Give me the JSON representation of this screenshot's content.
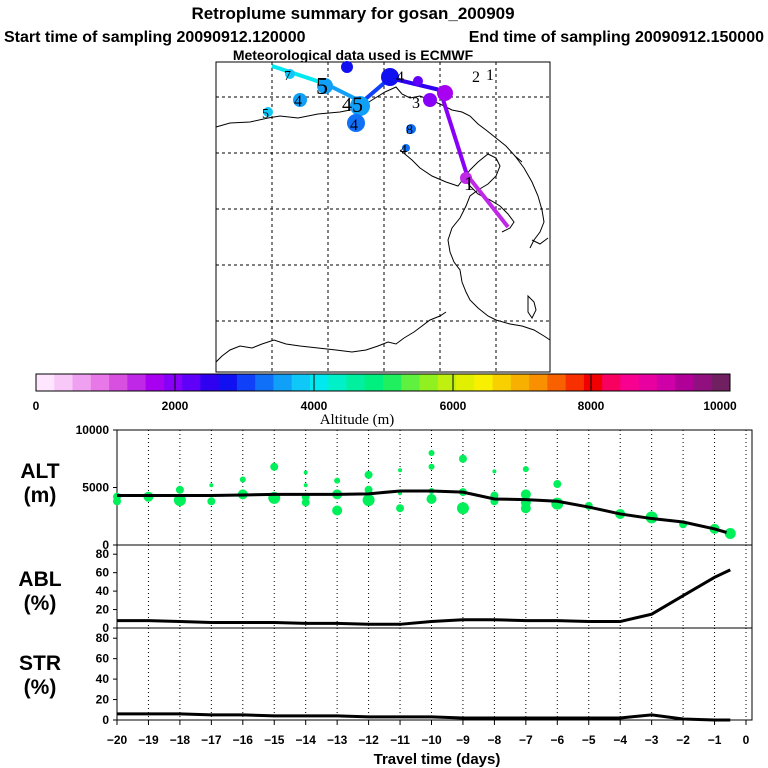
{
  "title": "Retroplume summary for gosan_200909",
  "start_label": "Start time of sampling 20090912.120000",
  "end_label": "End time of sampling 20090912.150000",
  "met_label": "Meteorological data used is ECMWF",
  "colorbar": {
    "label": "Altitude (m)",
    "ticks": [
      "0",
      "2000",
      "4000",
      "6000",
      "8000",
      "10000"
    ],
    "colors": [
      "#ffe6ff",
      "#f8c8f8",
      "#f0a0f0",
      "#e878e8",
      "#d850e0",
      "#c028e8",
      "#a800f0",
      "#8800f8",
      "#6000f8",
      "#3000f0",
      "#1010f0",
      "#1040f8",
      "#1070f8",
      "#10a0f8",
      "#10c8f8",
      "#00e8f0",
      "#00f0c8",
      "#00f0a0",
      "#00f080",
      "#20f060",
      "#60f040",
      "#90f020",
      "#c0f010",
      "#e0f000",
      "#f8f000",
      "#f8d000",
      "#f8b000",
      "#f89000",
      "#f86000",
      "#f83000",
      "#f00000",
      "#f80060",
      "#f80090",
      "#e800a0",
      "#d000a8",
      "#b00098",
      "#901080",
      "#702060"
    ]
  },
  "map": {
    "point_labels": [
      "1",
      "1",
      "2",
      "3",
      "4",
      "4",
      "4",
      "4",
      "4",
      "5",
      "5",
      "5",
      "7",
      "8"
    ]
  },
  "chart_data": [
    {
      "type": "line",
      "name": "ALT",
      "ylabel_line1": "ALT",
      "ylabel_line2": "(m)",
      "ylim": [
        0,
        10000
      ],
      "yticks": [
        "0",
        "5000",
        "10000"
      ],
      "x": [
        -20,
        -19,
        -18,
        -17,
        -16,
        -15,
        -14,
        -13,
        -12,
        -11,
        -10,
        -9,
        -8,
        -7,
        -6,
        -5,
        -4,
        -3,
        -2,
        -1,
        -0.5
      ],
      "y": [
        4300,
        4300,
        4300,
        4300,
        4350,
        4400,
        4400,
        4400,
        4450,
        4700,
        4700,
        4600,
        4000,
        3950,
        3800,
        3300,
        2700,
        2300,
        2000,
        1400,
        1000
      ],
      "scatter": {
        "color": "#00f05a",
        "points": [
          [
            -20,
            4200
          ],
          [
            -20,
            3800
          ],
          [
            -19,
            4200
          ],
          [
            -18,
            4800
          ],
          [
            -18,
            3900
          ],
          [
            -17,
            5200
          ],
          [
            -17,
            3800
          ],
          [
            -16,
            5700
          ],
          [
            -16,
            4400
          ],
          [
            -15,
            4100
          ],
          [
            -15,
            6800
          ],
          [
            -14,
            6300
          ],
          [
            -14,
            5200
          ],
          [
            -14,
            4200
          ],
          [
            -14,
            3700
          ],
          [
            -13,
            5600
          ],
          [
            -13,
            4400
          ],
          [
            -13,
            3000
          ],
          [
            -12,
            6100
          ],
          [
            -12,
            4800
          ],
          [
            -12,
            3900
          ],
          [
            -11,
            6500
          ],
          [
            -11,
            4500
          ],
          [
            -11,
            3200
          ],
          [
            -10,
            8000
          ],
          [
            -10,
            6800
          ],
          [
            -10,
            4700
          ],
          [
            -10,
            4000
          ],
          [
            -9,
            7500
          ],
          [
            -9,
            4600
          ],
          [
            -9,
            3200
          ],
          [
            -8,
            6400
          ],
          [
            -8,
            4300
          ],
          [
            -8,
            3800
          ],
          [
            -7,
            6600
          ],
          [
            -7,
            4400
          ],
          [
            -7,
            3700
          ],
          [
            -7,
            3200
          ],
          [
            -6,
            5300
          ],
          [
            -6,
            3600
          ],
          [
            -5,
            3400
          ],
          [
            -4,
            2700
          ],
          [
            -3,
            2400
          ],
          [
            -2,
            1800
          ],
          [
            -1,
            1400
          ],
          [
            -0.5,
            1000
          ]
        ]
      }
    },
    {
      "type": "line",
      "name": "ABL",
      "ylabel_line1": "ABL",
      "ylabel_line2": "(%)",
      "ylim": [
        0,
        90
      ],
      "yticks": [
        "0",
        "20",
        "40",
        "60",
        "80"
      ],
      "x": [
        -20,
        -19,
        -18,
        -17,
        -16,
        -15,
        -14,
        -13,
        -12,
        -11,
        -10,
        -9,
        -8,
        -7,
        -6,
        -5,
        -4,
        -3,
        -2,
        -1,
        -0.5
      ],
      "y": [
        8,
        8,
        7,
        6,
        6,
        6,
        5,
        5,
        4,
        4,
        7,
        9,
        9,
        8,
        8,
        7,
        7,
        15,
        35,
        55,
        63
      ]
    },
    {
      "type": "line",
      "name": "STR",
      "ylabel_line1": "STR",
      "ylabel_line2": "(%)",
      "ylim": [
        0,
        90
      ],
      "yticks": [
        "0",
        "20",
        "40",
        "60",
        "80"
      ],
      "x": [
        -20,
        -19,
        -18,
        -17,
        -16,
        -15,
        -14,
        -13,
        -12,
        -11,
        -10,
        -9,
        -8,
        -7,
        -6,
        -5,
        -4,
        -3,
        -2,
        -1,
        -0.5
      ],
      "y": [
        6,
        6,
        6,
        5,
        5,
        4,
        4,
        4,
        3,
        3,
        3,
        2,
        2,
        2,
        2,
        2,
        2,
        5,
        1,
        0,
        0
      ]
    }
  ],
  "x_axis": {
    "xlabel": "Travel time (days)",
    "ticks": [
      "−20",
      "−19",
      "−18",
      "−17",
      "−16",
      "−15",
      "−14",
      "−13",
      "−12",
      "−11",
      "−10",
      "−9",
      "−8",
      "−7",
      "−6",
      "−5",
      "−4",
      "−3",
      "−2",
      "−1",
      "0"
    ]
  }
}
